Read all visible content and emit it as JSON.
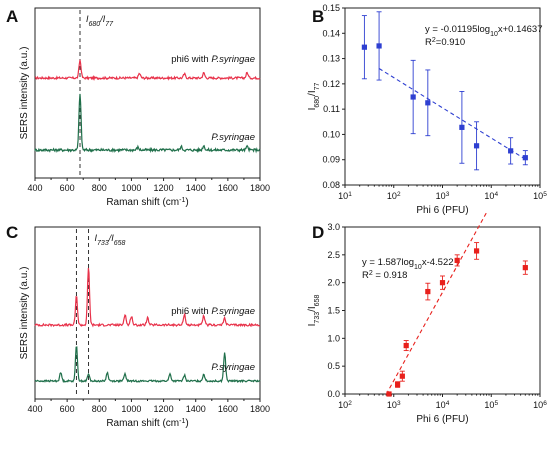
{
  "figure": {
    "panel_letters": [
      "A",
      "B",
      "C",
      "D"
    ]
  },
  "chart_data": [
    {
      "panel": "A",
      "type": "line",
      "xlabel_html": "Raman shift (cm<tspan baseline-shift='super' font-size='7'>-1</tspan>)",
      "xlabel": "Raman shift (cm-1)",
      "ylabel": "SERS intensity (a.u.)",
      "xlim": [
        400,
        1800
      ],
      "xticks": [
        "400",
        "600",
        "800",
        "1000",
        "1200",
        "1400",
        "1600",
        "1800"
      ],
      "grid": false,
      "annotation_ratio": "I680/I77",
      "dashed_line_x": [
        680
      ],
      "series": [
        {
          "name": "phi6 with P.syringae",
          "color": "#e8324a",
          "peaks": [
            [
              680,
              1.0
            ],
            [
              1050,
              0.25
            ],
            [
              1330,
              0.22
            ],
            [
              1450,
              0.28
            ],
            [
              1720,
              0.3
            ]
          ]
        },
        {
          "name": "P.syringae",
          "color": "#1f6f4a",
          "peaks": [
            [
              680,
              2.6
            ],
            [
              1040,
              0.12
            ],
            [
              1310,
              0.15
            ],
            [
              1450,
              0.2
            ],
            [
              1720,
              0.15
            ]
          ]
        }
      ]
    },
    {
      "panel": "B",
      "type": "scatter",
      "xlabel": "Phi 6 (PFU)",
      "ylabel": "I680/I77",
      "xscale": "log",
      "xlim": [
        10,
        100000
      ],
      "ylim": [
        0.08,
        0.15
      ],
      "xticks": [
        "10",
        "100",
        "1000",
        "10000",
        "100000"
      ],
      "yticks": [
        "0.08",
        "0.09",
        "0.10",
        "0.11",
        "0.12",
        "0.13",
        "0.14",
        "0.15"
      ],
      "grid": false,
      "color": "#2e3fd1",
      "points": [
        {
          "x": 25,
          "y": 0.1345,
          "err": 0.0125
        },
        {
          "x": 50,
          "y": 0.135,
          "err": 0.0135
        },
        {
          "x": 250,
          "y": 0.1148,
          "err": 0.0145
        },
        {
          "x": 500,
          "y": 0.1125,
          "err": 0.013
        },
        {
          "x": 2500,
          "y": 0.1028,
          "err": 0.0142
        },
        {
          "x": 5000,
          "y": 0.0955,
          "err": 0.0095
        },
        {
          "x": 25000,
          "y": 0.0935,
          "err": 0.0052
        },
        {
          "x": 50000,
          "y": 0.0908,
          "err": 0.0028
        }
      ],
      "fit": {
        "slope": -0.01195,
        "intercept": 0.14637,
        "x_range": [
          50,
          50000
        ]
      },
      "equation": "y = -0.01195log10x+0.14637",
      "r2": "R2=0.910"
    },
    {
      "panel": "C",
      "type": "line",
      "xlabel": "Raman shift (cm-1)",
      "ylabel": "SERS intensity (a.u.)",
      "xlim": [
        400,
        1800
      ],
      "xticks": [
        "400",
        "600",
        "800",
        "1000",
        "1200",
        "1400",
        "1600",
        "1800"
      ],
      "grid": false,
      "annotation_ratio": "I733/I658",
      "dashed_line_x": [
        658,
        733
      ],
      "series": [
        {
          "name": "phi6 with P.syringae",
          "color": "#e8324a",
          "peaks": [
            [
              658,
              1.6
            ],
            [
              733,
              3.2
            ],
            [
              960,
              0.6
            ],
            [
              1000,
              0.5
            ],
            [
              1100,
              0.4
            ],
            [
              1330,
              0.6
            ],
            [
              1450,
              0.5
            ],
            [
              1580,
              0.4
            ]
          ]
        },
        {
          "name": "P.syringae",
          "color": "#1f6f4a",
          "peaks": [
            [
              560,
              0.6
            ],
            [
              658,
              2.5
            ],
            [
              733,
              0.5
            ],
            [
              850,
              0.6
            ],
            [
              960,
              0.5
            ],
            [
              1240,
              0.5
            ],
            [
              1330,
              0.4
            ],
            [
              1450,
              0.5
            ],
            [
              1580,
              2.0
            ]
          ]
        }
      ]
    },
    {
      "panel": "D",
      "type": "scatter",
      "xlabel": "Phi 6 (PFU)",
      "ylabel": "I733/I658",
      "xscale": "log",
      "xlim": [
        100,
        1000000
      ],
      "ylim": [
        0.0,
        3.0
      ],
      "xticks": [
        "100",
        "1000",
        "10000",
        "100000",
        "1000000"
      ],
      "yticks": [
        "0.0",
        "0.5",
        "1.0",
        "1.5",
        "2.0",
        "2.5",
        "3.0"
      ],
      "grid": false,
      "color": "#e8201c",
      "points": [
        {
          "x": 800,
          "y": 0.0,
          "err": 0.03
        },
        {
          "x": 1200,
          "y": 0.17,
          "err": 0.05
        },
        {
          "x": 1500,
          "y": 0.32,
          "err": 0.09
        },
        {
          "x": 1800,
          "y": 0.87,
          "err": 0.09
        },
        {
          "x": 5000,
          "y": 1.84,
          "err": 0.15
        },
        {
          "x": 10000,
          "y": 2.0,
          "err": 0.12
        },
        {
          "x": 20000,
          "y": 2.4,
          "err": 0.1
        },
        {
          "x": 50000,
          "y": 2.57,
          "err": 0.15
        },
        {
          "x": 500000,
          "y": 2.27,
          "err": 0.12
        }
      ],
      "fit": {
        "slope": 1.587,
        "intercept": -4.522,
        "x_range": [
          700,
          80000
        ]
      },
      "equation": "y = 1.587log10x-4.522",
      "r2": "R2 = 0.918"
    }
  ]
}
